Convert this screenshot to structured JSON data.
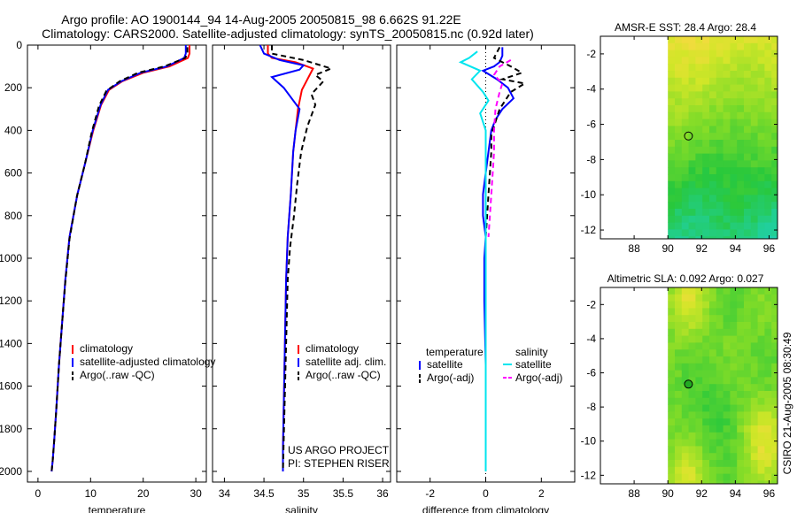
{
  "header": {
    "line1": "Argo profile: AO 1900144_94 14-Aug-2005 20050815_98 6.662S 91.22E",
    "line2": "Climatology: CARS2000. Satellite-adjusted climatology: synTS_20050815.nc (0.92d later)"
  },
  "footer": {
    "side_label": "CSIRO 21-Aug-2005 08:30:49"
  },
  "chart_data": [
    {
      "id": "temperature",
      "type": "line",
      "xlabel": "temperature",
      "ylabel": "",
      "xlim": [
        -2,
        32
      ],
      "ylim": [
        2050,
        0
      ],
      "xticks": [
        0,
        10,
        20,
        30
      ],
      "yticks": [
        0,
        200,
        400,
        600,
        800,
        1000,
        1200,
        1400,
        1600,
        1800,
        2000
      ],
      "legend": [
        "climatology",
        "satellite-adjusted climatology",
        "Argo(..raw -QC)"
      ],
      "series": [
        {
          "name": "climatology",
          "color": "#ff0000",
          "dash": "",
          "x": [
            28.8,
            28.8,
            28.5,
            25,
            20,
            16,
            13.5,
            12,
            10.5,
            9,
            7.5,
            6,
            5.2,
            4.6,
            4,
            3.5,
            3.1,
            2.8,
            2.6
          ],
          "y": [
            0,
            40,
            60,
            100,
            130,
            170,
            210,
            280,
            400,
            550,
            700,
            900,
            1100,
            1300,
            1500,
            1700,
            1850,
            1950,
            2000
          ]
        },
        {
          "name": "satellite-adjusted climatology",
          "color": "#0000ff",
          "dash": "",
          "x": [
            28.1,
            28.1,
            27.8,
            24.5,
            19.5,
            15.8,
            13.3,
            11.9,
            10.4,
            9,
            7.5,
            6,
            5.2,
            4.6,
            4,
            3.5,
            3.1,
            2.8,
            2.6
          ],
          "y": [
            0,
            40,
            60,
            100,
            130,
            170,
            210,
            280,
            400,
            550,
            700,
            900,
            1100,
            1300,
            1500,
            1700,
            1850,
            1950,
            2000
          ]
        },
        {
          "name": "Argo(..raw -QC)",
          "color": "#000000",
          "dash": "6,4",
          "x": [
            28.4,
            28.4,
            28,
            24,
            19,
            15.5,
            13,
            11.6,
            10.2,
            8.9,
            7.4,
            6,
            5.2,
            4.6,
            4,
            3.5,
            3.1,
            2.8,
            2.6
          ],
          "y": [
            10,
            40,
            60,
            100,
            130,
            170,
            215,
            285,
            410,
            560,
            710,
            910,
            1110,
            1300,
            1500,
            1700,
            1850,
            1950,
            2000
          ]
        }
      ]
    },
    {
      "id": "salinity",
      "type": "line",
      "xlabel": "salinity",
      "ylabel": "",
      "xlim": [
        33.85,
        36.1
      ],
      "ylim": [
        2050,
        0
      ],
      "xticks": [
        34,
        34.5,
        35,
        35.5,
        36
      ],
      "xtick_labels": [
        "34",
        "34.5",
        "35",
        "35.5",
        "36"
      ],
      "legend": [
        "climatology",
        "satellite adj. clim.",
        "Argo(..raw -QC)"
      ],
      "annotations": [
        "US ARGO PROJECT",
        "PI: STEPHEN RISER"
      ],
      "series": [
        {
          "name": "climatology",
          "color": "#ff0000",
          "dash": "",
          "x": [
            34.55,
            34.55,
            34.6,
            34.9,
            35.12,
            35.05,
            34.98,
            34.93,
            34.9,
            34.87,
            34.84,
            34.8,
            34.78,
            34.77,
            34.76,
            34.75,
            34.74,
            34.74
          ],
          "y": [
            0,
            40,
            60,
            80,
            110,
            160,
            210,
            300,
            400,
            500,
            700,
            900,
            1100,
            1300,
            1500,
            1700,
            1900,
            2000
          ]
        },
        {
          "name": "satellite adj. clim.",
          "color": "#0000ff",
          "dash": "",
          "x": [
            34.45,
            34.5,
            34.7,
            35.0,
            34.95,
            34.6,
            34.75,
            34.95,
            34.9,
            34.87,
            34.84,
            34.8,
            34.78,
            34.77,
            34.76,
            34.75,
            34.74,
            34.74
          ],
          "y": [
            0,
            40,
            70,
            95,
            115,
            150,
            200,
            300,
            400,
            500,
            700,
            900,
            1100,
            1300,
            1500,
            1700,
            1900,
            2000
          ]
        },
        {
          "name": "Argo(..raw -QC)",
          "color": "#000000",
          "dash": "6,4",
          "x": [
            34.6,
            34.6,
            35.0,
            35.35,
            35.15,
            35.25,
            35.1,
            35.15,
            35.05,
            34.97,
            34.92,
            34.88,
            34.83,
            34.8,
            34.78,
            34.76,
            34.74
          ],
          "y": [
            0,
            40,
            70,
            110,
            140,
            170,
            230,
            280,
            380,
            500,
            650,
            800,
            950,
            1100,
            1400,
            1700,
            2000
          ]
        }
      ]
    },
    {
      "id": "difference",
      "type": "line",
      "xlabel": "difference from climatology",
      "ylabel": "",
      "xlim": [
        -3.2,
        3.2
      ],
      "ylim": [
        2050,
        0
      ],
      "xticks": [
        -2,
        0,
        2
      ],
      "legend_headers": [
        "temperature",
        "salinity"
      ],
      "legend": [
        "satellite",
        "Argo(-adj)",
        "satellite",
        "Argo(-adj)"
      ],
      "series": [
        {
          "name": "temperature satellite",
          "color": "#0000ff",
          "dash": "",
          "x": [
            0.6,
            0.6,
            0.5,
            0.3,
            -0.1,
            0.4,
            0.8,
            1.0,
            0.6,
            0.35,
            0.2,
            0.1,
            0.0,
            -0.1,
            -0.1,
            0.0,
            -0.05,
            -0.05,
            0.0,
            0.0,
            0.0
          ],
          "y": [
            10,
            50,
            80,
            100,
            120,
            160,
            200,
            250,
            300,
            350,
            400,
            500,
            600,
            700,
            800,
            900,
            1000,
            1200,
            1500,
            1800,
            2000
          ]
        },
        {
          "name": "temperature Argo(-adj)",
          "color": "#000000",
          "dash": "6,4",
          "x": [
            0.5,
            0.3,
            0.9,
            1.3,
            0.6,
            1.4,
            0.9,
            0.7,
            0.5,
            0.35,
            0.2,
            0.2,
            0.15,
            0.1,
            0.05,
            0.0,
            0.0
          ],
          "y": [
            10,
            60,
            100,
            130,
            160,
            180,
            220,
            260,
            300,
            360,
            420,
            500,
            600,
            700,
            800,
            900,
            1000
          ]
        },
        {
          "name": "salinity satellite",
          "color": "#00e5ee",
          "dash": "",
          "x": [
            -0.3,
            -0.6,
            -0.9,
            -0.2,
            -0.5,
            -0.1,
            0.1,
            -0.2,
            0.0,
            0.0,
            0.0,
            0.0,
            0.0
          ],
          "y": [
            30,
            60,
            80,
            120,
            160,
            220,
            260,
            320,
            400,
            600,
            1000,
            1500,
            2000
          ]
        },
        {
          "name": "salinity Argo(-adj)",
          "color": "#ff00ff",
          "dash": "6,4",
          "x": [
            0.9,
            0.5,
            0.3,
            0.6,
            0.5,
            0.35,
            0.3,
            0.3,
            0.25,
            0.2,
            0.15,
            0.1
          ],
          "y": [
            70,
            100,
            140,
            180,
            220,
            300,
            400,
            500,
            600,
            700,
            800,
            900
          ]
        }
      ]
    },
    {
      "id": "sst_map",
      "type": "heatmap",
      "title": "AMSR-E SST: 28.4 Argo: 28.4",
      "xlim": [
        86,
        96.5
      ],
      "ylim": [
        -12.5,
        -1
      ],
      "xticks": [
        88,
        90,
        92,
        94,
        96
      ],
      "yticks": [
        -2,
        -4,
        -6,
        -8,
        -10,
        -12
      ],
      "data_extent_x": [
        90,
        96.5
      ],
      "argo_position": {
        "lon": 91.22,
        "lat": -6.662
      },
      "marker_fill": "none"
    },
    {
      "id": "sla_map",
      "type": "heatmap",
      "title": "Altimetric SLA: 0.092 Argo: 0.027",
      "xlim": [
        86,
        96.5
      ],
      "ylim": [
        -12.5,
        -1
      ],
      "xticks": [
        88,
        90,
        92,
        94,
        96
      ],
      "yticks": [
        -2,
        -4,
        -6,
        -8,
        -10,
        -12
      ],
      "data_extent_x": [
        90,
        96.5
      ],
      "argo_position": {
        "lon": 91.22,
        "lat": -6.662
      },
      "marker_fill": "#22aa22"
    }
  ]
}
